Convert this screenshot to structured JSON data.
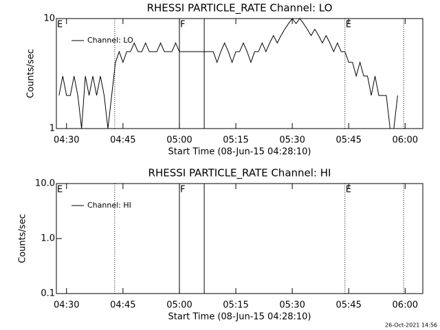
{
  "chart_data": [
    {
      "type": "line",
      "title": "RHESSI PARTICLE_RATE Channel: LO",
      "x_label": "Start Time (08-Jun-15 04:28:10)",
      "y_label": "Counts/sec",
      "log_y": true,
      "legend": "upper-left",
      "xlim": [
        267.3,
        364.7
      ],
      "ylim": [
        1,
        10
      ],
      "xticks": [
        {
          "value": 270,
          "label": "04:30"
        },
        {
          "value": 285,
          "label": "04:45"
        },
        {
          "value": 300,
          "label": "05:00"
        },
        {
          "value": 315,
          "label": "05:15"
        },
        {
          "value": 330,
          "label": "05:30"
        },
        {
          "value": 345,
          "label": "05:45"
        },
        {
          "value": 360,
          "label": "06:00"
        }
      ],
      "yticks": [
        1,
        10
      ],
      "markers": [
        {
          "x": 267.3,
          "label": "E"
        },
        {
          "x": 282.8,
          "style": "dotted"
        },
        {
          "x": 300.0,
          "label": "F",
          "style": "solid"
        },
        {
          "x": 306.6,
          "style": "solid"
        },
        {
          "x": 344.0,
          "label": "E",
          "style": "dotted"
        },
        {
          "x": 359.6,
          "style": "dotted"
        }
      ],
      "x": [
        268,
        269,
        270,
        271,
        272,
        273,
        274,
        275,
        276,
        277,
        278,
        279,
        280,
        281,
        282,
        283,
        284,
        285,
        286,
        287,
        288,
        289,
        290,
        291,
        292,
        293,
        294,
        295,
        296,
        297,
        298,
        299,
        300,
        301,
        302,
        303,
        304,
        305,
        306,
        307,
        308,
        309,
        310,
        311,
        312,
        313,
        314,
        315,
        316,
        317,
        318,
        319,
        320,
        321,
        322,
        323,
        324,
        325,
        326,
        327,
        328,
        329,
        330,
        331,
        332,
        333,
        334,
        335,
        336,
        337,
        338,
        339,
        340,
        341,
        342,
        343,
        344,
        345,
        346,
        347,
        348,
        349,
        350,
        351,
        352,
        353,
        354,
        355,
        356,
        357,
        358
      ],
      "series": [
        {
          "name": "Channel: LO",
          "color": "#000000",
          "values": [
            2,
            3,
            2,
            2,
            3,
            2,
            1,
            3,
            2,
            3,
            2,
            3,
            2,
            1,
            2,
            4,
            5,
            4,
            5,
            5,
            6,
            5,
            5,
            6,
            5,
            5,
            5,
            6,
            5,
            5,
            5,
            6,
            5,
            5,
            5,
            5,
            5,
            5,
            5,
            5,
            5,
            5,
            4,
            5,
            6,
            5,
            4,
            5,
            5,
            6,
            5,
            4,
            5,
            5,
            6,
            5,
            6,
            7,
            6,
            7,
            8,
            9,
            10,
            9,
            10,
            9,
            8,
            7,
            8,
            7,
            6,
            7,
            6,
            5,
            6,
            5,
            5,
            4,
            4,
            3,
            4,
            3,
            3,
            2,
            3,
            2,
            2,
            2,
            1,
            1,
            2
          ]
        }
      ]
    },
    {
      "type": "line",
      "title": "RHESSI PARTICLE_RATE Channel: HI",
      "x_label": "Start Time (08-Jun-15 04:28:10)",
      "y_label": "Counts/sec",
      "log_y": true,
      "legend": "upper-left",
      "xlim": [
        267.3,
        364.7
      ],
      "ylim": [
        0.1,
        10
      ],
      "xticks": [
        {
          "value": 270,
          "label": "04:30"
        },
        {
          "value": 285,
          "label": "04:45"
        },
        {
          "value": 300,
          "label": "05:00"
        },
        {
          "value": 315,
          "label": "05:15"
        },
        {
          "value": 330,
          "label": "05:30"
        },
        {
          "value": 345,
          "label": "05:45"
        },
        {
          "value": 360,
          "label": "06:00"
        }
      ],
      "yticks": [
        0.1,
        {
          "value": 1,
          "label": "1.0"
        },
        {
          "value": 10,
          "label": "10.0"
        }
      ],
      "markers": [
        {
          "x": 267.3,
          "label": "E"
        },
        {
          "x": 282.8,
          "style": "dotted"
        },
        {
          "x": 300.0,
          "label": "F",
          "style": "solid"
        },
        {
          "x": 306.6,
          "style": "solid"
        },
        {
          "x": 344.0,
          "label": "E",
          "style": "dotted"
        },
        {
          "x": 359.6,
          "style": "dotted"
        }
      ],
      "x": [],
      "series": [
        {
          "name": "Channel: HI",
          "color": "#000000",
          "values": []
        }
      ]
    }
  ],
  "footer": "26-Oct-2021 14:56"
}
